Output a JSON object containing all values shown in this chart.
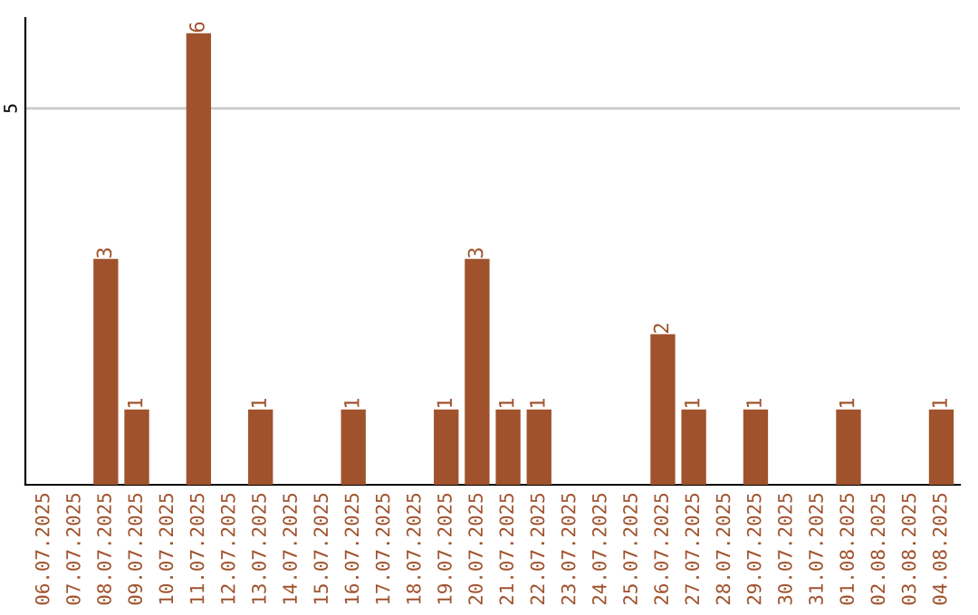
{
  "chart_data": {
    "type": "bar",
    "categories": [
      "06.07.2025",
      "07.07.2025",
      "08.07.2025",
      "09.07.2025",
      "10.07.2025",
      "11.07.2025",
      "12.07.2025",
      "13.07.2025",
      "14.07.2025",
      "15.07.2025",
      "16.07.2025",
      "17.07.2025",
      "18.07.2025",
      "19.07.2025",
      "20.07.2025",
      "21.07.2025",
      "22.07.2025",
      "23.07.2025",
      "24.07.2025",
      "25.07.2025",
      "26.07.2025",
      "27.07.2025",
      "28.07.2025",
      "29.07.2025",
      "30.07.2025",
      "31.07.2025",
      "01.08.2025",
      "02.08.2025",
      "03.08.2025",
      "04.08.2025"
    ],
    "values": [
      0,
      0,
      3,
      1,
      0,
      6,
      0,
      1,
      0,
      0,
      1,
      0,
      0,
      1,
      3,
      1,
      1,
      0,
      0,
      0,
      2,
      1,
      0,
      1,
      0,
      0,
      1,
      0,
      0,
      1
    ],
    "value_labels": [
      null,
      null,
      "3",
      "1",
      null,
      "6",
      null,
      "1",
      null,
      null,
      "1",
      null,
      null,
      "1",
      "3",
      "1",
      "1",
      null,
      null,
      null,
      "2",
      "1",
      null,
      "1",
      null,
      null,
      "1",
      null,
      null,
      "1"
    ],
    "color": "#a0522d",
    "ylim": [
      0,
      6.2
    ],
    "yticks": [
      5
    ],
    "grid": "y"
  }
}
